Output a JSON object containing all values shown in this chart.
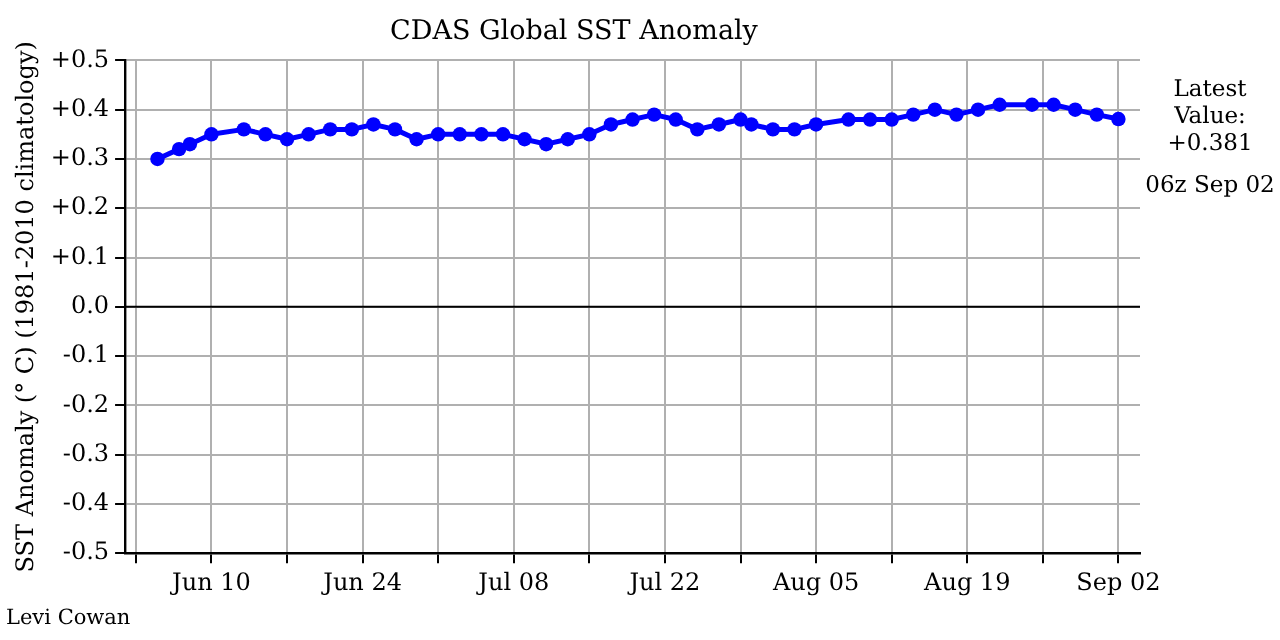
{
  "chart_data": {
    "type": "line",
    "title": "CDAS Global SST Anomaly",
    "ylabel": "SST Anomaly (° C) (1981-2010 climatology)",
    "x": [
      "--06-05",
      "--06-07",
      "--06-08",
      "--06-10",
      "--06-13",
      "--06-15",
      "--06-17",
      "--06-19",
      "--06-21",
      "--06-23",
      "--06-25",
      "--06-27",
      "--06-29",
      "--07-01",
      "--07-03",
      "--07-05",
      "--07-07",
      "--07-09",
      "--07-11",
      "--07-13",
      "--07-15",
      "--07-17",
      "--07-19",
      "--07-21",
      "--07-23",
      "--07-25",
      "--07-27",
      "--07-29",
      "--07-30",
      "--08-01",
      "--08-03",
      "--08-05",
      "--08-08",
      "--08-10",
      "--08-12",
      "--08-14",
      "--08-16",
      "--08-18",
      "--08-20",
      "--08-22",
      "--08-25",
      "--08-27",
      "--08-29",
      "--08-31",
      "--09-02"
    ],
    "series": [
      {
        "color": "#0000ff",
        "values": [
          0.3,
          0.32,
          0.33,
          0.35,
          0.36,
          0.35,
          0.34,
          0.35,
          0.36,
          0.36,
          0.37,
          0.36,
          0.34,
          0.35,
          0.35,
          0.35,
          0.35,
          0.34,
          0.33,
          0.34,
          0.35,
          0.37,
          0.38,
          0.39,
          0.38,
          0.36,
          0.37,
          0.38,
          0.37,
          0.36,
          0.36,
          0.37,
          0.38,
          0.38,
          0.38,
          0.39,
          0.4,
          0.39,
          0.4,
          0.41,
          0.41,
          0.41,
          0.4,
          0.39,
          0.381
        ]
      }
    ],
    "xlim": [
      "--06-02",
      "--09-04"
    ],
    "xticks": [
      {
        "value": "--06-03",
        "label": null
      },
      {
        "value": "--06-10",
        "label": "Jun 10"
      },
      {
        "value": "--06-17",
        "label": null
      },
      {
        "value": "--06-24",
        "label": "Jun 24"
      },
      {
        "value": "--07-01",
        "label": null
      },
      {
        "value": "--07-08",
        "label": "Jul 08"
      },
      {
        "value": "--07-15",
        "label": null
      },
      {
        "value": "--07-22",
        "label": "Jul 22"
      },
      {
        "value": "--07-29",
        "label": null
      },
      {
        "value": "--08-05",
        "label": "Aug 05"
      },
      {
        "value": "--08-12",
        "label": null
      },
      {
        "value": "--08-19",
        "label": "Aug 19"
      },
      {
        "value": "--08-26",
        "label": null
      },
      {
        "value": "--09-02",
        "label": "Sep 02"
      }
    ],
    "ylim": [
      -0.5,
      0.5
    ],
    "yticks": [
      {
        "value": -0.5,
        "label": "-0.5"
      },
      {
        "value": -0.4,
        "label": "-0.4"
      },
      {
        "value": -0.3,
        "label": "-0.3"
      },
      {
        "value": -0.2,
        "label": "-0.2"
      },
      {
        "value": -0.1,
        "label": "-0.1"
      },
      {
        "value": 0,
        "label": "0.0"
      },
      {
        "value": 0.1,
        "label": "+0.1"
      },
      {
        "value": 0.2,
        "label": "+0.2"
      },
      {
        "value": 0.3,
        "label": "+0.3"
      },
      {
        "value": 0.4,
        "label": "+0.4"
      },
      {
        "value": 0.5,
        "label": "+0.5"
      }
    ],
    "ref_lines": [
      {
        "axis": "y",
        "value": 0,
        "color": "#000000",
        "line_style": "solid"
      }
    ],
    "grid": true,
    "legend": false,
    "marker": "circle",
    "line_style": "solid",
    "annotations": [
      "Latest Value: +0.381",
      "06z Sep 02",
      "Levi Cowan"
    ]
  }
}
